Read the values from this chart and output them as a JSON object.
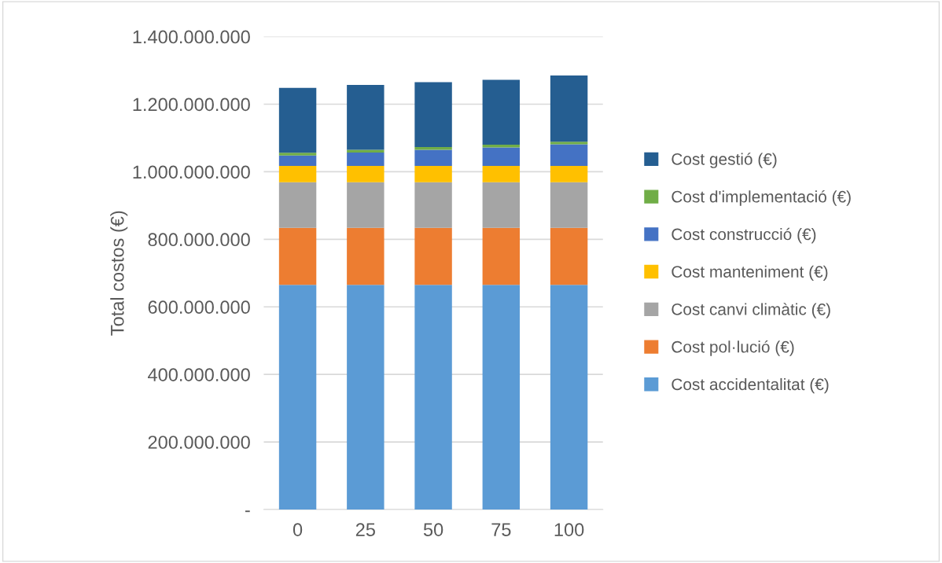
{
  "chart_data": {
    "type": "bar",
    "stacked": true,
    "ylabel": "Total costos (€)",
    "categories": [
      "0",
      "25",
      "50",
      "75",
      "100"
    ],
    "series": [
      {
        "name": "Cost accidentalitat (€)",
        "color": "#5b9bd5",
        "values": [
          665000000,
          665000000,
          665000000,
          665000000,
          665000000
        ]
      },
      {
        "name": "Cost pol·lució (€)",
        "color": "#ed7d31",
        "values": [
          169000000,
          169000000,
          169000000,
          169000000,
          169000000
        ]
      },
      {
        "name": "Cost canvi climàtic (€)",
        "color": "#a5a5a5",
        "values": [
          135000000,
          135000000,
          135000000,
          135000000,
          135000000
        ]
      },
      {
        "name": "Cost manteniment (€)",
        "color": "#ffc000",
        "values": [
          48000000,
          48000000,
          48000000,
          48000000,
          48000000
        ]
      },
      {
        "name": "Cost construcció (€)",
        "color": "#4472c4",
        "values": [
          31000000,
          40000000,
          48000000,
          55000000,
          64000000
        ]
      },
      {
        "name": "Cost d'implementació (€)",
        "color": "#70ad47",
        "values": [
          8000000,
          8000000,
          8000000,
          8000000,
          8000000
        ]
      },
      {
        "name": "Cost gestió (€)",
        "color": "#255e91",
        "values": [
          192000000,
          192000000,
          192000000,
          192000000,
          196000000
        ]
      }
    ],
    "ylim": [
      0,
      1400000000
    ],
    "yticks": [
      {
        "value": 0,
        "label": "-"
      },
      {
        "value": 200000000,
        "label": "200.000.000"
      },
      {
        "value": 400000000,
        "label": "400.000.000"
      },
      {
        "value": 600000000,
        "label": "600.000.000"
      },
      {
        "value": 800000000,
        "label": "800.000.000"
      },
      {
        "value": 1000000000,
        "label": "1.000.000.000"
      },
      {
        "value": 1200000000,
        "label": "1.200.000.000"
      },
      {
        "value": 1400000000,
        "label": "1.400.000.000"
      }
    ],
    "grid": "y",
    "legend": "right"
  }
}
